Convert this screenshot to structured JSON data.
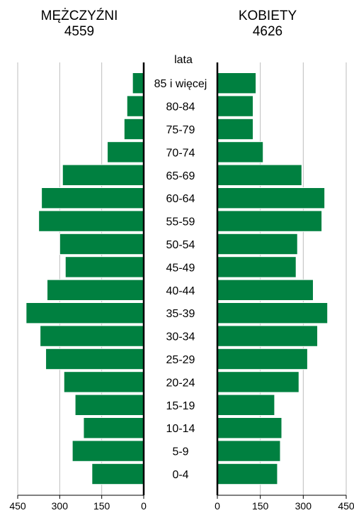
{
  "left_title": "MĘŻCZYŹNI",
  "left_total": "4559",
  "right_title": "KOBIETY",
  "right_total": "4626",
  "colors": {
    "bar": "#008040",
    "bar_stroke": "#ffffff",
    "grid": "#bdbdbd",
    "axis": "#000000"
  },
  "chart_data": {
    "type": "bar",
    "orientation": "horizontal-population-pyramid",
    "center_label": "lata",
    "categories": [
      "85 i więcej",
      "80-84",
      "75-79",
      "70-74",
      "65-69",
      "60-64",
      "55-59",
      "50-54",
      "45-49",
      "40-44",
      "35-39",
      "30-34",
      "25-29",
      "20-24",
      "15-19",
      "10-14",
      "5-9",
      "0-4"
    ],
    "series": [
      {
        "name": "MĘŻCZYŹNI",
        "values": [
          40,
          60,
          70,
          130,
          290,
          365,
          375,
          300,
          280,
          345,
          420,
          370,
          350,
          285,
          245,
          215,
          255,
          185
        ]
      },
      {
        "name": "KOBIETY",
        "values": [
          135,
          125,
          125,
          160,
          295,
          375,
          365,
          280,
          275,
          335,
          385,
          350,
          315,
          285,
          200,
          225,
          220,
          210
        ]
      }
    ],
    "left_axis": {
      "ticks": [
        450,
        300,
        150,
        0
      ],
      "range": [
        0,
        450
      ],
      "direction": "reversed"
    },
    "right_axis": {
      "ticks": [
        0,
        150,
        300,
        450
      ],
      "range": [
        0,
        450
      ]
    },
    "grid": true
  }
}
